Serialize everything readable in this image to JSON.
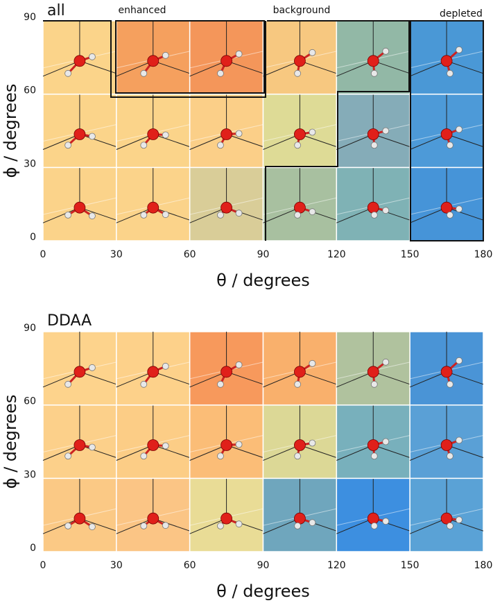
{
  "chart_data": [
    {
      "type": "heatmap",
      "title": "all",
      "xlabel": "θ / degrees",
      "ylabel": "ϕ / degrees",
      "xlim": [
        0,
        180
      ],
      "ylim": [
        0,
        90
      ],
      "xticks": [
        0,
        30,
        60,
        90,
        120,
        150,
        180
      ],
      "yticks": [
        0,
        30,
        60,
        90
      ],
      "annotations": [
        "enhanced",
        "background",
        "depleted"
      ],
      "cell_colors": [
        [
          "#fbd38a",
          "#fbd38a",
          "#d9cd98",
          "#a8c0a0",
          "#7fb2b5",
          "#4694d8"
        ],
        [
          "#fbd48a",
          "#fbd48a",
          "#fbcf88",
          "#dedb96",
          "#85acb8",
          "#4d9ad8"
        ],
        [
          "#fbd48a",
          "#f5a05e",
          "#f4965a",
          "#f7c880",
          "#92b8a6",
          "#4a98d6"
        ]
      ]
    },
    {
      "type": "heatmap",
      "title": "DDAA",
      "xlabel": "θ / degrees",
      "ylabel": "ϕ / degrees",
      "xlim": [
        0,
        180
      ],
      "ylim": [
        0,
        90
      ],
      "xticks": [
        0,
        30,
        60,
        90,
        120,
        150,
        180
      ],
      "yticks": [
        0,
        30,
        60,
        90
      ],
      "cell_colors": [
        [
          "#fbc985",
          "#fbc585",
          "#e9dc96",
          "#6fa6bd",
          "#3d8fe0",
          "#5aa2d6"
        ],
        [
          "#fcd08a",
          "#fccd86",
          "#fbbd77",
          "#dcd896",
          "#78b0bc",
          "#5aa0d6"
        ],
        [
          "#fdd38c",
          "#fdd18a",
          "#f7995c",
          "#f9b06c",
          "#b0c29e",
          "#4a94d6"
        ]
      ]
    }
  ]
}
